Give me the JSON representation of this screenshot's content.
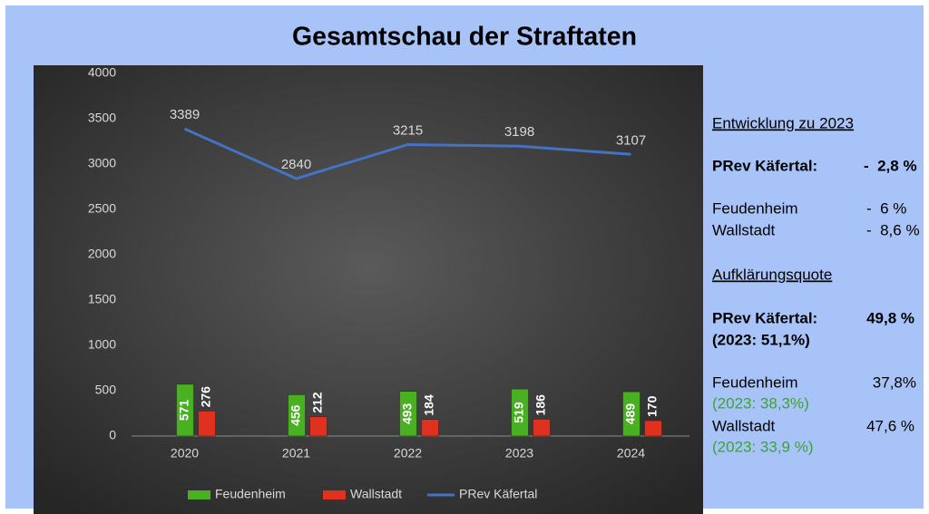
{
  "chart_data": {
    "type": "bar",
    "title": "Gesamtschau der Straftaten",
    "categories": [
      "2020",
      "2021",
      "2022",
      "2023",
      "2024"
    ],
    "series": [
      {
        "name": "Feudenheim",
        "type": "bar",
        "color": "#48b021",
        "values": [
          571,
          456,
          493,
          519,
          489
        ]
      },
      {
        "name": "Wallstadt",
        "type": "bar",
        "color": "#e0301e",
        "values": [
          276,
          212,
          184,
          186,
          170
        ]
      },
      {
        "name": "PRev Käfertal",
        "type": "line",
        "color": "#4472c4",
        "values": [
          3389,
          2840,
          3215,
          3198,
          3107
        ]
      }
    ],
    "ylim": [
      0,
      4000
    ],
    "yticks": [
      0,
      500,
      1000,
      1500,
      2000,
      2500,
      3000,
      3500,
      4000
    ],
    "grid": false,
    "legend": "bottom"
  },
  "side_panel": {
    "development": {
      "heading": "Entwicklung zu 2023",
      "rows": [
        {
          "label": "PRev Käfertal:",
          "value": "-  2,8 %"
        },
        {
          "label": "Feudenheim",
          "value": "-  6 %"
        },
        {
          "label": "Wallstadt",
          "value": "-  8,6 %"
        }
      ]
    },
    "clearance": {
      "heading": "Aufklärungsquote",
      "rows": [
        {
          "label": "PRev Käfertal:",
          "value": "49,8 %",
          "previous": "(2023: 51,1%)"
        },
        {
          "label": "Feudenheim",
          "value": "37,8%",
          "previous": "(2023: 38,3%)"
        },
        {
          "label": "Wallstadt",
          "value": "47,6 %",
          "previous": "(2023: 33,9 %)"
        }
      ]
    }
  }
}
